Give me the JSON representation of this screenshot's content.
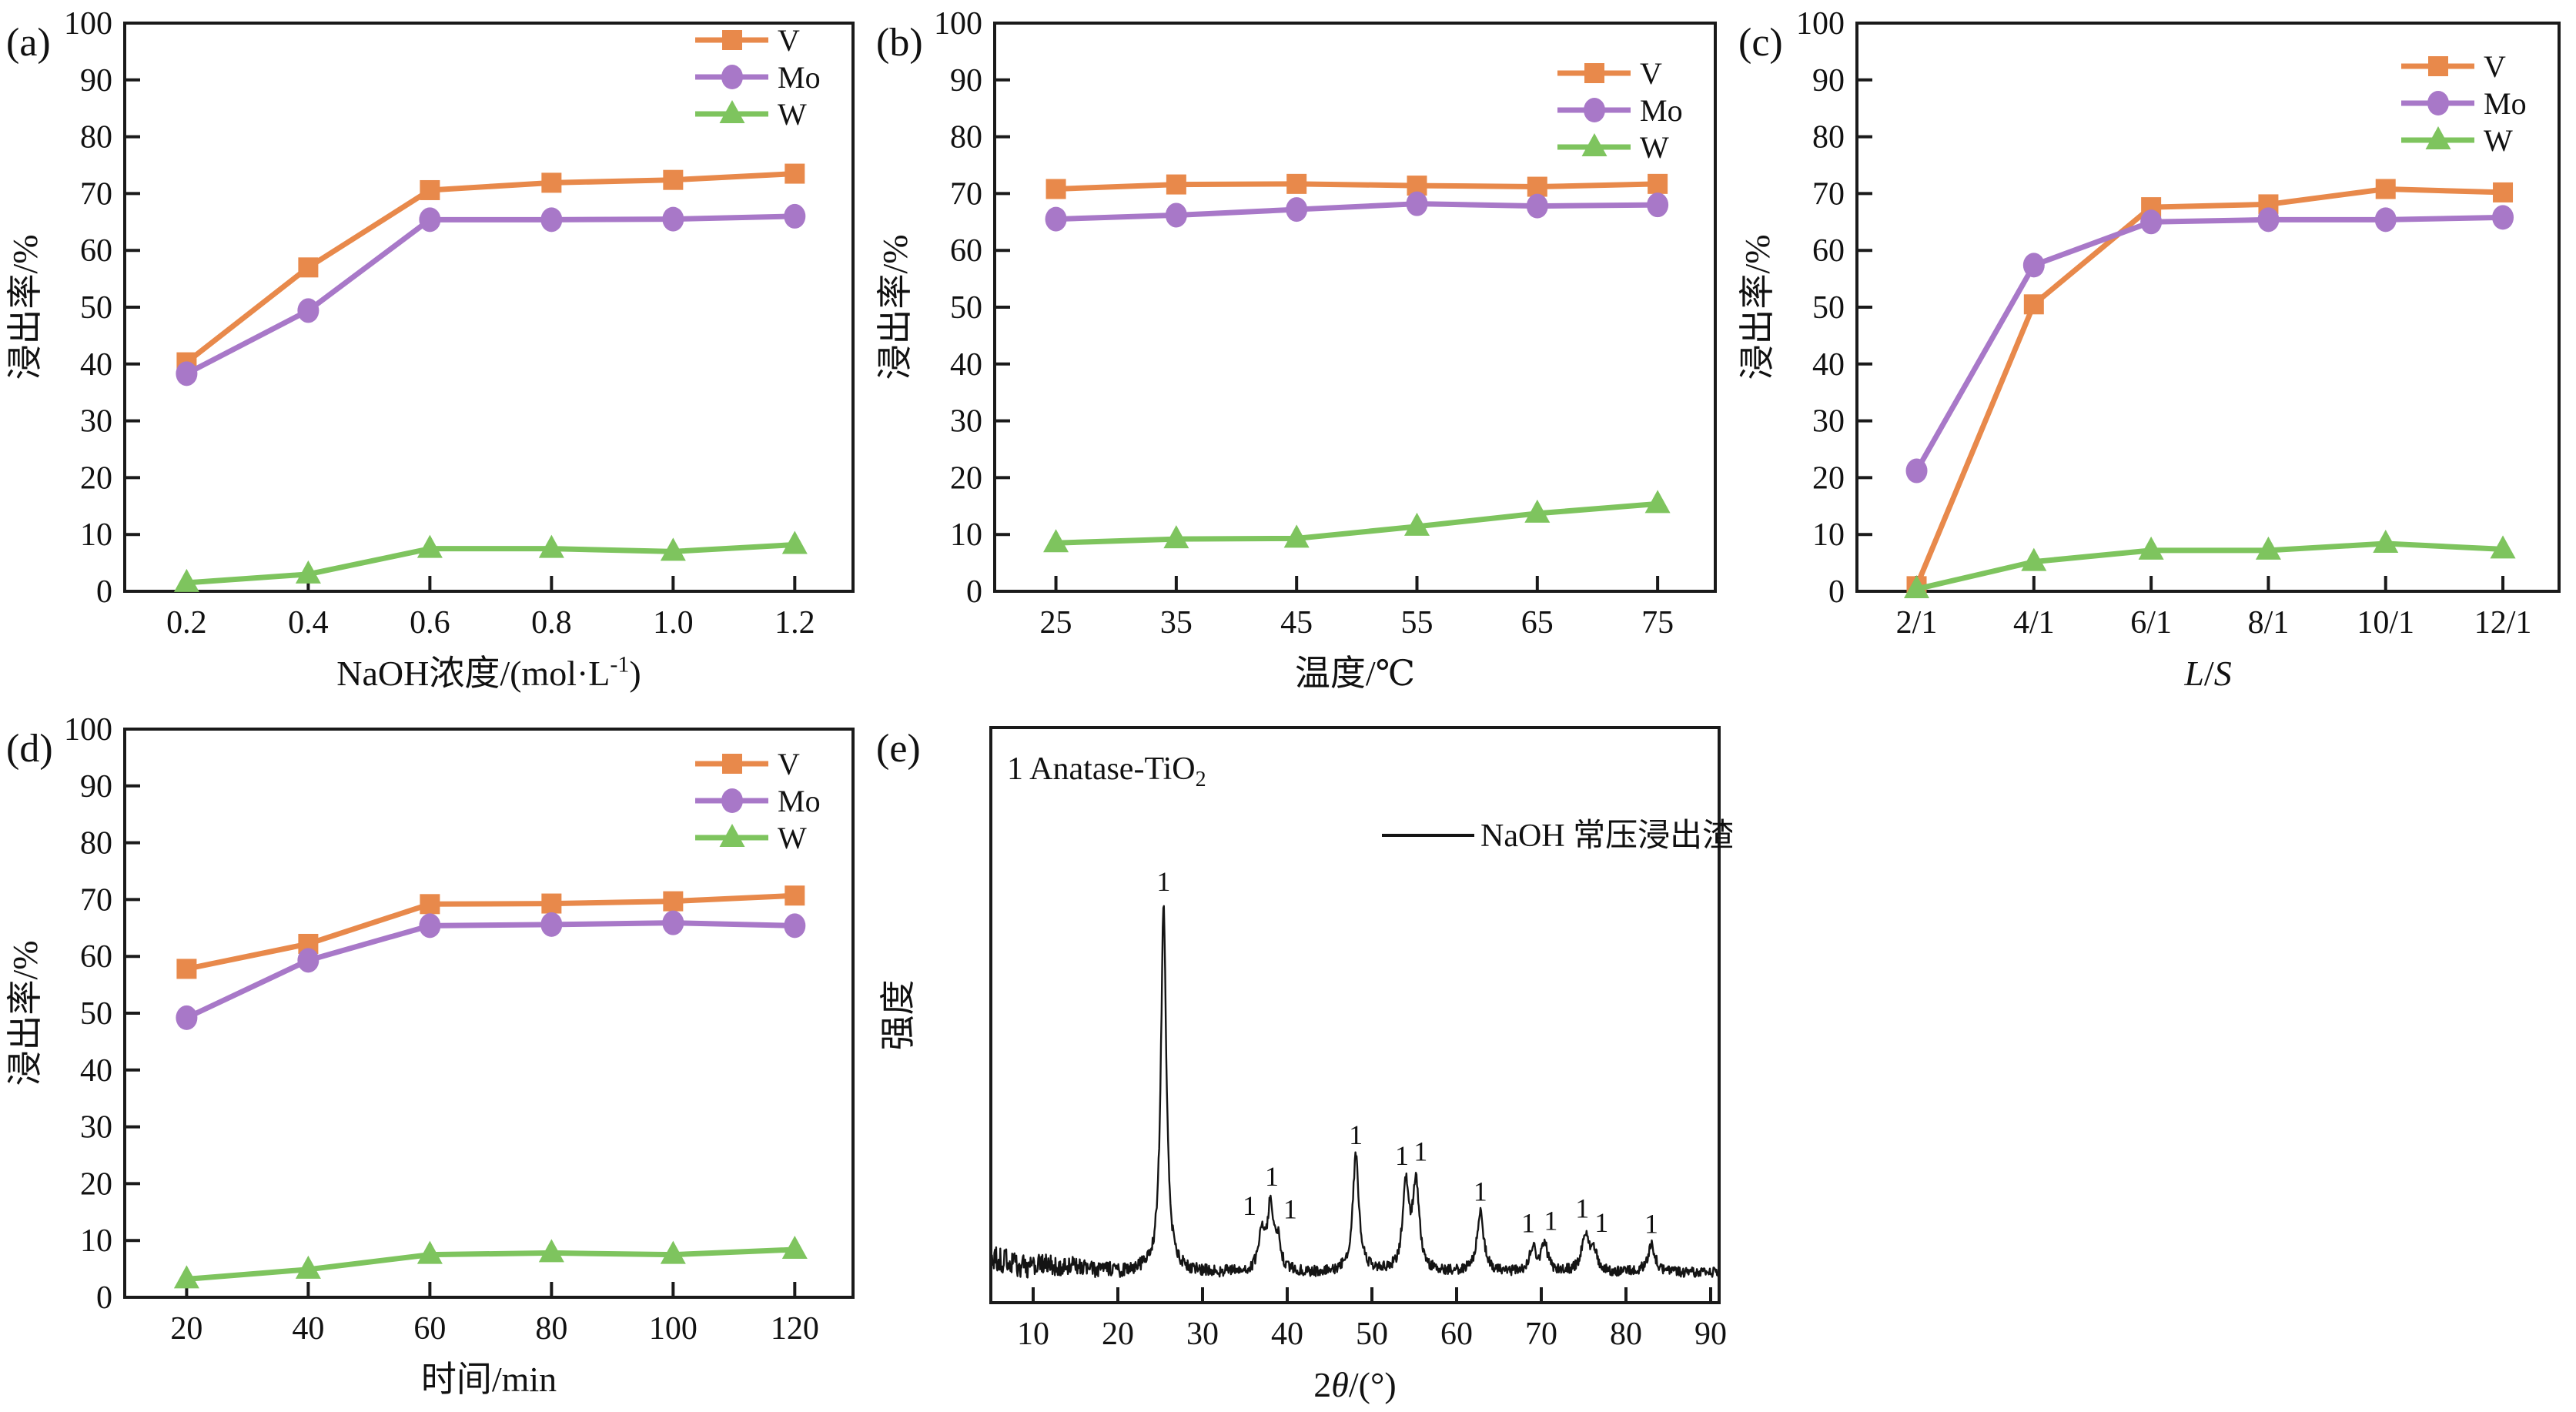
{
  "figure": {
    "background": "#ffffff",
    "axis_color": "#1a1a1a",
    "text_color": "#111111",
    "series_style": {
      "V": {
        "color": "#E8894B",
        "marker": "square"
      },
      "Mo": {
        "color": "#A878C8",
        "marker": "circle"
      },
      "W": {
        "color": "#7EC45E",
        "marker": "triangle"
      }
    }
  },
  "chart_data": [
    {
      "id": "a",
      "panel_label": "(a)",
      "type": "line",
      "xlabel_text": "NaOH浓度/(mol·L-1)",
      "xlabel_segments": [
        {
          "t": "NaOH浓度/(mol·L"
        },
        {
          "t": "-1",
          "sup": true
        },
        {
          "t": ")"
        }
      ],
      "ylabel": "浸出率/%",
      "categories": [
        "0.2",
        "0.4",
        "0.6",
        "0.8",
        "1.0",
        "1.2"
      ],
      "series": [
        {
          "name": "V",
          "values": [
            40.3,
            57.0,
            70.6,
            71.9,
            72.4,
            73.5
          ]
        },
        {
          "name": "Mo",
          "values": [
            38.3,
            49.4,
            65.4,
            65.4,
            65.5,
            66.0
          ]
        },
        {
          "name": "W",
          "values": [
            1.5,
            3.0,
            7.5,
            7.5,
            7.0,
            8.2
          ]
        }
      ],
      "ylim": [
        0,
        100
      ],
      "ytick_step": 10,
      "grid": false,
      "legend": [
        "V",
        "Mo",
        "W"
      ],
      "legend_position": "top-right",
      "legend_y": 52
    },
    {
      "id": "b",
      "panel_label": "(b)",
      "type": "line",
      "xlabel_text": "温度/℃",
      "xlabel_segments": [
        {
          "t": "温度/℃"
        }
      ],
      "ylabel": "浸出率/%",
      "categories": [
        "25",
        "35",
        "45",
        "55",
        "65",
        "75"
      ],
      "series": [
        {
          "name": "V",
          "values": [
            70.8,
            71.6,
            71.7,
            71.4,
            71.2,
            71.7
          ]
        },
        {
          "name": "Mo",
          "values": [
            65.5,
            66.2,
            67.2,
            68.2,
            67.8,
            68.0
          ]
        },
        {
          "name": "W",
          "values": [
            8.5,
            9.2,
            9.3,
            11.4,
            13.7,
            15.4
          ]
        }
      ],
      "ylim": [
        0,
        100
      ],
      "ytick_step": 10,
      "grid": false,
      "legend": [
        "V",
        "Mo",
        "W"
      ],
      "legend_position": "top-right",
      "legend_y": 95
    },
    {
      "id": "c",
      "panel_label": "(c)",
      "type": "line",
      "xlabel_text": "L/S",
      "xlabel_segments": [
        {
          "t": "L",
          "italic": true
        },
        {
          "t": "/"
        },
        {
          "t": "S",
          "italic": true
        }
      ],
      "ylabel": "浸出率/%",
      "categories": [
        "2/1",
        "4/1",
        "6/1",
        "8/1",
        "10/1",
        "12/1"
      ],
      "series": [
        {
          "name": "V",
          "values": [
            0.9,
            50.5,
            67.6,
            68.1,
            70.8,
            70.2
          ]
        },
        {
          "name": "Mo",
          "values": [
            21.2,
            57.4,
            65.0,
            65.4,
            65.4,
            65.8
          ]
        },
        {
          "name": "W",
          "values": [
            0.4,
            5.2,
            7.2,
            7.2,
            8.4,
            7.4
          ]
        }
      ],
      "ylim": [
        0,
        100
      ],
      "ytick_step": 10,
      "grid": false,
      "legend": [
        "V",
        "Mo",
        "W"
      ],
      "legend_position": "top-right",
      "legend_y": 86
    },
    {
      "id": "d",
      "panel_label": "(d)",
      "type": "line",
      "xlabel_text": "时间/min",
      "xlabel_segments": [
        {
          "t": "时间/min"
        }
      ],
      "ylabel": "浸出率/%",
      "categories": [
        "20",
        "40",
        "60",
        "80",
        "100",
        "120"
      ],
      "series": [
        {
          "name": "V",
          "values": [
            57.8,
            62.2,
            69.2,
            69.3,
            69.7,
            70.7
          ]
        },
        {
          "name": "Mo",
          "values": [
            49.2,
            59.3,
            65.4,
            65.6,
            65.9,
            65.4
          ]
        },
        {
          "name": "W",
          "values": [
            3.2,
            4.9,
            7.5,
            7.8,
            7.5,
            8.4
          ]
        }
      ],
      "ylim": [
        0,
        100
      ],
      "ytick_step": 10,
      "grid": false,
      "legend": [
        "V",
        "Mo",
        "W"
      ],
      "legend_position": "top-right",
      "legend_y": 75
    },
    {
      "id": "e",
      "panel_label": "(e)",
      "type": "line",
      "subtype": "xrd",
      "annotation_text": "1 Anatase-TiO2",
      "annotation_segments": [
        {
          "t": "1 Anatase-TiO"
        },
        {
          "t": "2",
          "sub": true
        }
      ],
      "legend": [
        "NaOH 常压浸出渣"
      ],
      "legend_position": "top-right",
      "xlabel_text": "2θ/(°)",
      "xlabel_segments": [
        {
          "t": "2"
        },
        {
          "t": "θ",
          "italic": true
        },
        {
          "t": "/(°)"
        }
      ],
      "ylabel": "强度",
      "xlim": [
        5,
        91
      ],
      "xticks": [
        10,
        20,
        30,
        40,
        50,
        60,
        70,
        80,
        90
      ],
      "grid": false,
      "trace_color": "#141414",
      "phase_label": "1",
      "peaks": [
        {
          "two_theta": 25.4,
          "height": 64.0,
          "width": 0.38,
          "label_dx": 0
        },
        {
          "two_theta": 37.0,
          "height": 6.0,
          "width": 0.45,
          "label_dx": -16
        },
        {
          "two_theta": 38.0,
          "height": 11.0,
          "width": 0.4,
          "label_dx": 2
        },
        {
          "two_theta": 38.9,
          "height": 5.0,
          "width": 0.4,
          "label_dx": 16
        },
        {
          "two_theta": 48.1,
          "height": 20.0,
          "width": 0.45,
          "label_dx": 0
        },
        {
          "two_theta": 54.0,
          "height": 14.5,
          "width": 0.45,
          "label_dx": -5
        },
        {
          "two_theta": 55.2,
          "height": 15.4,
          "width": 0.45,
          "label_dx": 6
        },
        {
          "two_theta": 62.8,
          "height": 10.2,
          "width": 0.5,
          "label_dx": 0
        },
        {
          "two_theta": 69.0,
          "height": 4.3,
          "width": 0.45,
          "label_dx": -6
        },
        {
          "two_theta": 70.4,
          "height": 4.7,
          "width": 0.45,
          "label_dx": 8
        },
        {
          "two_theta": 75.2,
          "height": 6.7,
          "width": 0.5,
          "label_dx": -4
        },
        {
          "two_theta": 76.2,
          "height": 3.5,
          "width": 0.45,
          "label_dx": 10
        },
        {
          "two_theta": 83.0,
          "height": 4.7,
          "width": 0.55,
          "label_dx": 0
        }
      ],
      "baseline": {
        "level": 5.2,
        "bump": 2.6,
        "bump_decay": 8,
        "noise": 0.9,
        "noise_bump": 1.7,
        "noise_decay": 10,
        "seed": 20
      }
    }
  ]
}
